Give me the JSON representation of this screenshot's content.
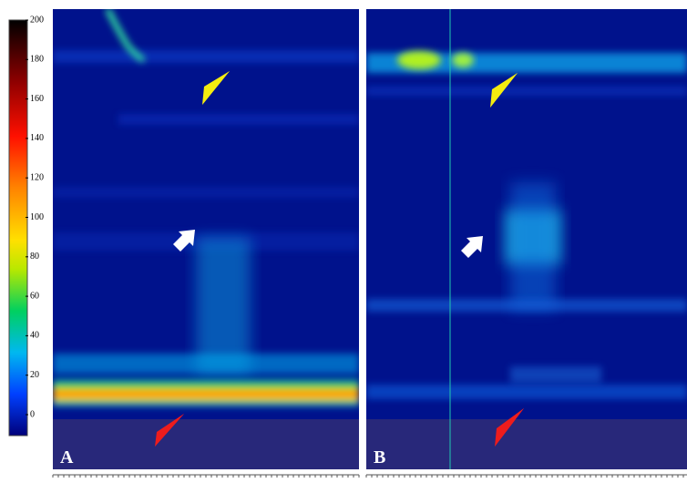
{
  "colorbar": {
    "range": [
      0,
      200
    ],
    "ticks": [
      0,
      20,
      40,
      60,
      80,
      100,
      120,
      140,
      160,
      180,
      200
    ]
  },
  "panels": [
    {
      "label": "A"
    },
    {
      "label": "B"
    }
  ]
}
